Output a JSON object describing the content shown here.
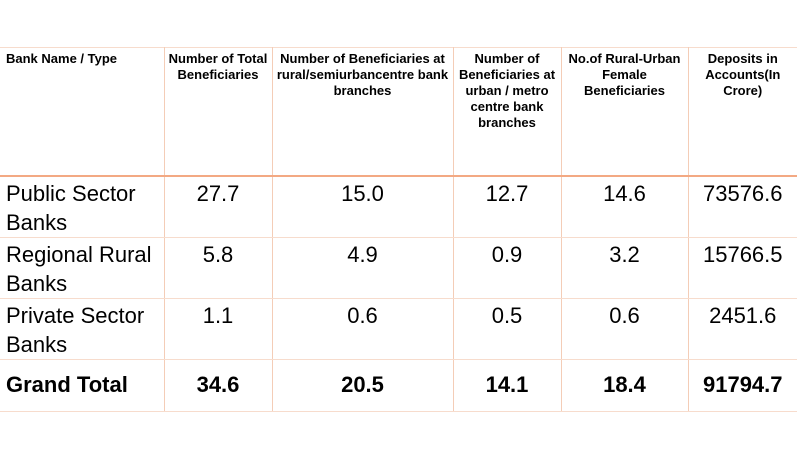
{
  "table": {
    "headers": [
      "Bank Name / Type",
      "Number of Total Beneficiaries",
      "Number of Beneficiaries at rural/semiurbancentre bank branches",
      "Number of Beneficiaries at urban / metro centre bank branches",
      "No.of Rural-Urban Female Beneficiaries",
      "Deposits in Accounts(In Crore)"
    ],
    "rows": [
      [
        "Public Sector Banks",
        "27.7",
        "15.0",
        "12.7",
        "14.6",
        "73576.6"
      ],
      [
        "Regional Rural Banks",
        "5.8",
        "4.9",
        "0.9",
        "3.2",
        "15766.5"
      ],
      [
        "Private Sector Banks",
        "1.1",
        "0.6",
        "0.5",
        "0.6",
        "2451.6"
      ]
    ],
    "total": [
      "Grand Total",
      "34.6",
      "20.5",
      "14.1",
      "18.4",
      "91794.7"
    ]
  }
}
